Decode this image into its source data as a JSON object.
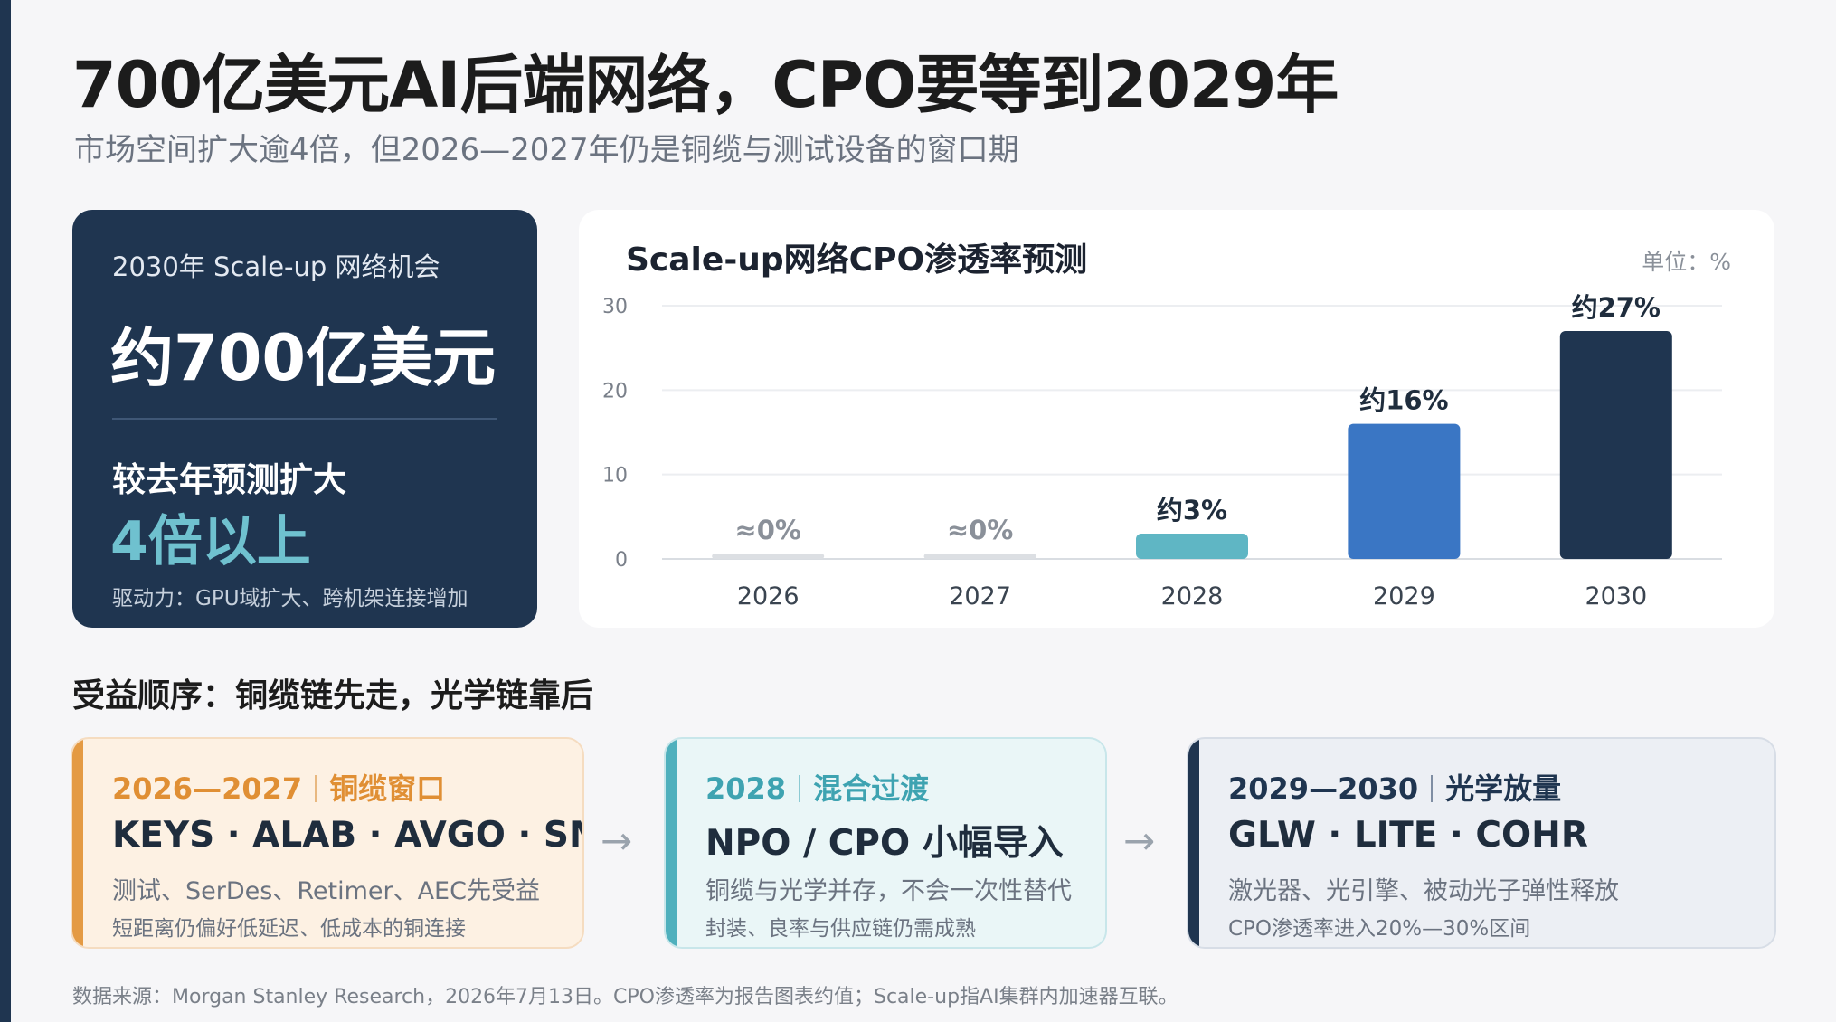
{
  "title": "700亿美元AI后端网络，CPO要等到2029年",
  "subtitle": "市场空间扩大逾4倍，但2026—2027年仍是铜缆与测试设备的窗口期",
  "highlight": {
    "label": "2030年 Scale-up 网络机会",
    "amount": "约700亿美元",
    "sub": "较去年预测扩大",
    "big": "4倍以上",
    "driver": "驱动力：GPU域扩大、跨机架连接增加"
  },
  "chart_data": {
    "type": "bar",
    "title": "Scale-up网络CPO渗透率预测",
    "unit": "单位：%",
    "categories": [
      "2026",
      "2027",
      "2028",
      "2029",
      "2030"
    ],
    "values": [
      0,
      0,
      3,
      16,
      27
    ],
    "labels": [
      "≈0%",
      "≈0%",
      "约3%",
      "约16%",
      "约27%"
    ],
    "colors": [
      "#dcdfe3",
      "#dcdfe3",
      "#5fb6c4",
      "#3a76c4",
      "#1f3550"
    ],
    "ylim": [
      0,
      30
    ],
    "yticks": [
      "0",
      "10",
      "20",
      "30"
    ],
    "grid": true
  },
  "section_title": "受益顺序：铜缆链先走，光学链靠后",
  "stages": [
    {
      "period": "2026—2027",
      "phase": "铜缆窗口",
      "tickers": "KEYS · ALAB · AVGO · SMTC",
      "line1": "测试、SerDes、Retimer、AEC先受益",
      "line2": "短距离仍偏好低延迟、低成本的铜连接"
    },
    {
      "period": "2028",
      "phase": "混合过渡",
      "tickers": "NPO / CPO 小幅导入",
      "line1": "铜缆与光学并存，不会一次性替代",
      "line2": "封装、良率与供应链仍需成熟"
    },
    {
      "period": "2029—2030",
      "phase": "光学放量",
      "tickers": "GLW · LITE · COHR",
      "line1": "激光器、光引擎、被动光子弹性释放",
      "line2": "CPO渗透率进入20%—30%区间"
    }
  ],
  "arrow": "→",
  "footnote": "数据来源：Morgan Stanley Research，2026年7月13日。CPO渗透率为报告图表约值；Scale-up指AI集群内加速器互联。"
}
